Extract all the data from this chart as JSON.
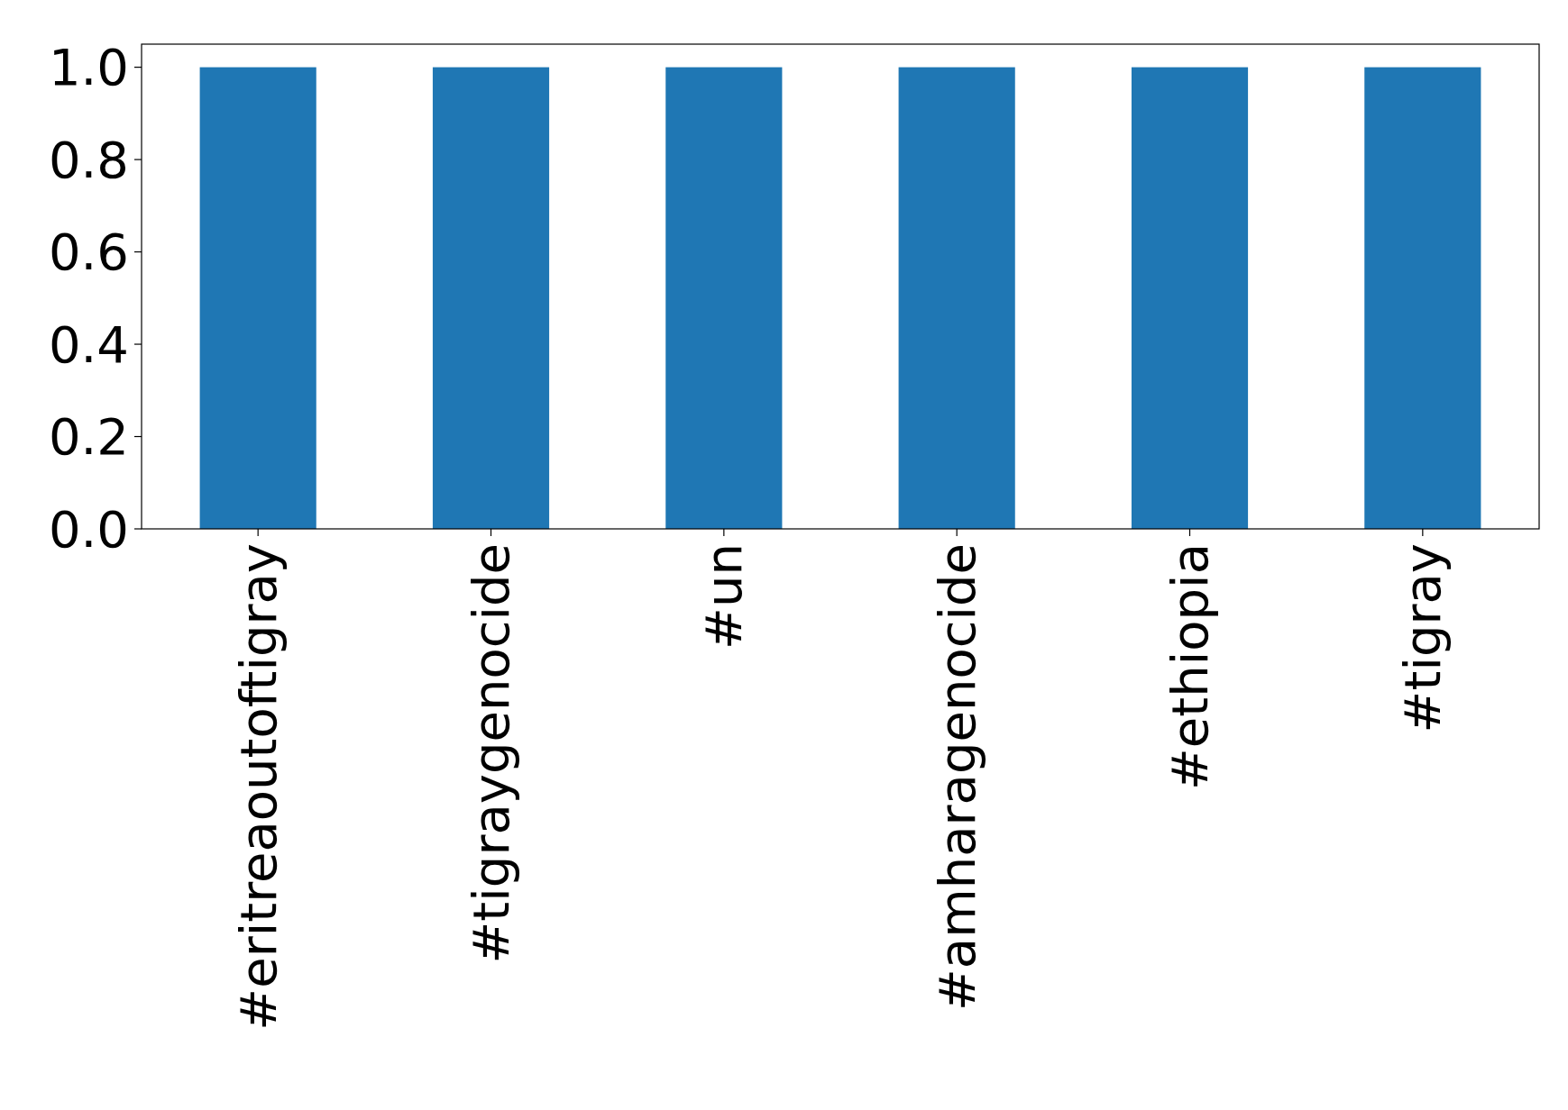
{
  "chart_data": {
    "type": "bar",
    "categories": [
      "#eritreaoutoftigray",
      "#tigraygenocide",
      "#un",
      "#amharagenocide",
      "#ethiopia",
      "#tigray"
    ],
    "values": [
      1,
      1,
      1,
      1,
      1,
      1
    ],
    "color": "#1f77b4",
    "ylim": [
      0,
      1.05
    ],
    "yticks": [
      {
        "value": 0,
        "label": "0.0"
      },
      {
        "value": 0.2,
        "label": "0.2"
      },
      {
        "value": 0.4,
        "label": "0.4"
      },
      {
        "value": 0.6,
        "label": "0.6"
      },
      {
        "value": 0.8,
        "label": "0.8"
      },
      {
        "value": 1,
        "label": "1.0"
      }
    ],
    "grid": false
  }
}
